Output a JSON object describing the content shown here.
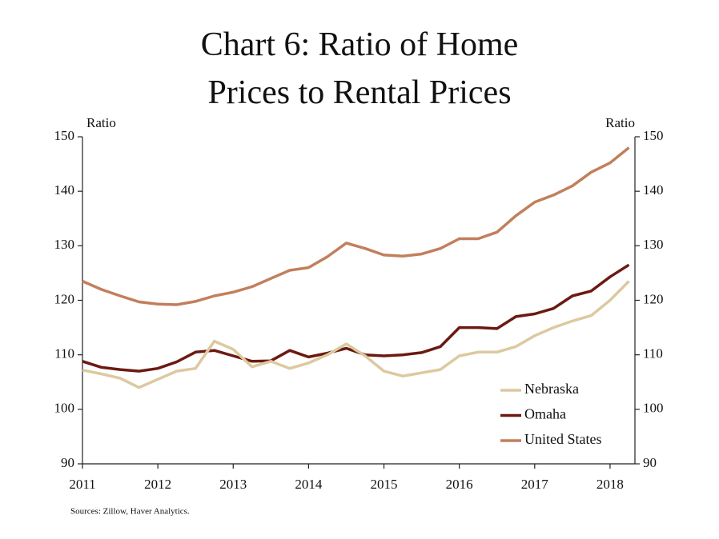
{
  "chart_data": {
    "type": "line",
    "title": "Chart 6: Ratio of Home Prices to Rental Prices",
    "y_label": "Ratio",
    "y2_label": "Ratio",
    "source": "Sources: Zillow, Haver Analytics.",
    "x": [
      2011,
      2011.25,
      2011.5,
      2011.75,
      2012,
      2012.25,
      2012.5,
      2012.75,
      2013,
      2013.25,
      2013.5,
      2013.75,
      2014,
      2014.25,
      2014.5,
      2014.75,
      2015,
      2015.25,
      2015.5,
      2015.75,
      2016,
      2016.25,
      2016.5,
      2016.75,
      2017,
      2017.25,
      2017.5,
      2017.75,
      2018,
      2018.25
    ],
    "series": [
      {
        "name": "Nebraska",
        "color": "#dcc9a0",
        "values": [
          107.2,
          106.5,
          105.7,
          104,
          105.5,
          107,
          107.5,
          112.5,
          111,
          107.8,
          108.8,
          107.5,
          108.5,
          110,
          112,
          109.8,
          107,
          106.1,
          106.7,
          107.3,
          109.8,
          110.5,
          110.5,
          111.5,
          113.5,
          115,
          116.2,
          117.2,
          120,
          123.5
        ]
      },
      {
        "name": "Omaha",
        "color": "#6b1a12",
        "values": [
          108.8,
          107.7,
          107.3,
          107,
          107.5,
          108.7,
          110.5,
          110.8,
          109.8,
          108.8,
          108.9,
          110.8,
          109.6,
          110.3,
          111.2,
          110,
          109.8,
          110,
          110.4,
          111.5,
          115,
          115,
          114.8,
          117,
          117.5,
          118.5,
          120.8,
          121.7,
          124.3,
          126.5
        ]
      },
      {
        "name": "United States",
        "color": "#c27f5c",
        "values": [
          123.5,
          122,
          120.8,
          119.7,
          119.3,
          119.2,
          119.8,
          120.8,
          121.5,
          122.5,
          124,
          125.5,
          126,
          128,
          130.5,
          129.5,
          128.3,
          128.1,
          128.5,
          129.5,
          131.3,
          131.3,
          132.5,
          135.5,
          138,
          139.3,
          141,
          143.5,
          145.2,
          148
        ]
      }
    ],
    "xlim": [
      2011,
      2018.33
    ],
    "xticks": [
      2011,
      2012,
      2013,
      2014,
      2015,
      2016,
      2017,
      2018
    ],
    "ylim": [
      90,
      150
    ],
    "yticks": [
      90,
      100,
      110,
      120,
      130,
      140,
      150
    ],
    "y2lim": [
      90,
      150
    ],
    "y2ticks": [
      90,
      100,
      110,
      120,
      130,
      140,
      150
    ],
    "legend": "lower right"
  }
}
